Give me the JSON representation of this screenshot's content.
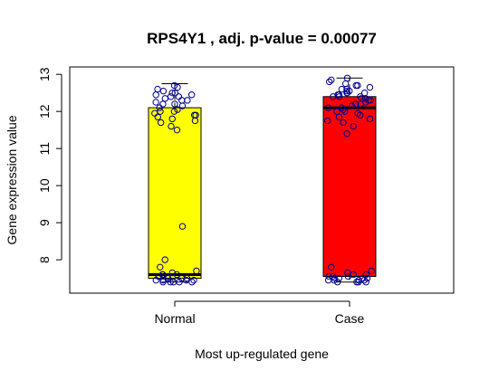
{
  "chart_data": {
    "type": "boxplot",
    "title": "RPS4Y1 , adj. p-value = 0.00077",
    "xlabel": "Most up-regulated gene",
    "ylabel": "Gene expression value",
    "ylim": [
      7.1,
      13.2
    ],
    "yticks": [
      "8",
      "9",
      "10",
      "11",
      "12",
      "13"
    ],
    "categories": [
      "Normal",
      "Case"
    ],
    "box_colors": [
      "#ffff00",
      "#ff0000"
    ],
    "point_color": "#00008b",
    "series": [
      {
        "name": "Normal",
        "q1": 7.5,
        "median": 7.6,
        "q3": 12.1,
        "whisker_low": 7.4,
        "whisker_high": 12.75,
        "points": [
          12.7,
          12.65,
          12.6,
          12.55,
          12.5,
          12.5,
          12.45,
          12.45,
          12.4,
          12.4,
          12.35,
          12.3,
          12.3,
          12.25,
          12.2,
          12.2,
          12.15,
          12.1,
          12.05,
          12.0,
          12.0,
          11.95,
          11.9,
          11.9,
          11.85,
          11.8,
          11.75,
          11.7,
          11.6,
          11.5,
          8.9,
          8.0,
          7.8,
          7.7,
          7.65,
          7.6,
          7.6,
          7.55,
          7.55,
          7.5,
          7.5,
          7.5,
          7.45,
          7.45,
          7.45,
          7.4,
          7.4,
          7.4,
          7.4,
          7.4,
          7.45,
          7.5,
          7.55,
          7.6
        ]
      },
      {
        "name": "Case",
        "q1": 7.55,
        "median": 12.1,
        "q3": 12.4,
        "whisker_low": 7.4,
        "whisker_high": 12.9,
        "points": [
          12.9,
          12.85,
          12.8,
          12.75,
          12.7,
          12.7,
          12.65,
          12.6,
          12.6,
          12.55,
          12.55,
          12.5,
          12.5,
          12.5,
          12.45,
          12.45,
          12.4,
          12.4,
          12.4,
          12.35,
          12.35,
          12.3,
          12.3,
          12.25,
          12.2,
          12.2,
          12.15,
          12.1,
          12.1,
          12.05,
          12.0,
          12.0,
          11.95,
          11.9,
          11.85,
          11.8,
          11.75,
          11.7,
          11.6,
          11.4,
          7.8,
          7.7,
          7.65,
          7.6,
          7.6,
          7.55,
          7.55,
          7.5,
          7.5,
          7.5,
          7.45,
          7.45,
          7.45,
          7.4,
          7.4,
          7.4,
          7.4,
          7.45,
          7.5,
          7.55
        ]
      }
    ]
  }
}
